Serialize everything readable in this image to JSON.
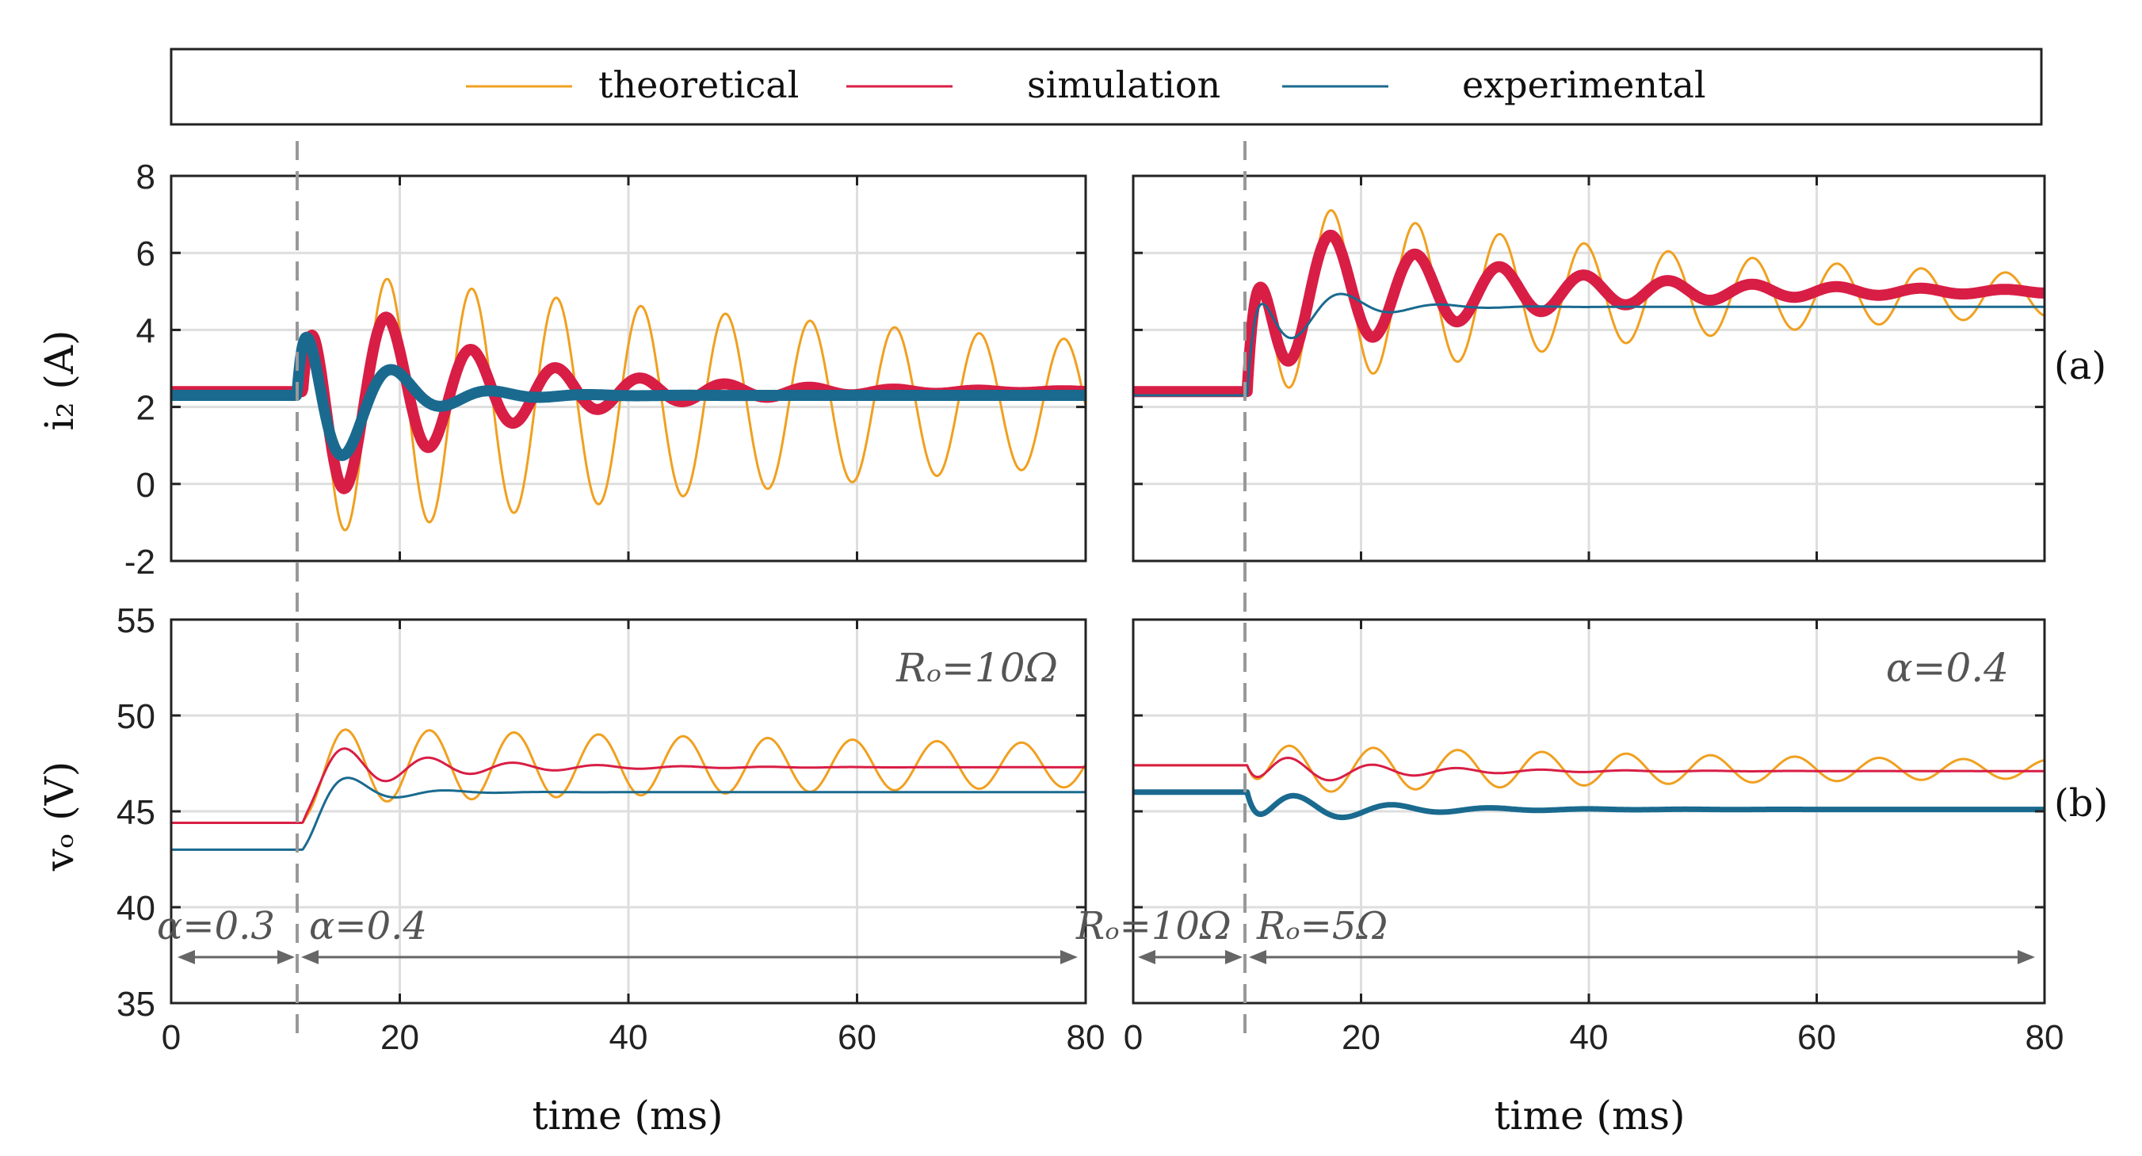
{
  "legend": {
    "entries": [
      {
        "label": "theoretical",
        "color": "#F0A020"
      },
      {
        "label": "simulation",
        "color": "#D81E45"
      },
      {
        "label": "experimental",
        "color": "#1A6A8F"
      }
    ]
  },
  "labels": {
    "ylabel_top": "i₂ (A)",
    "ylabel_bottom": "vₒ (V)",
    "xlabel": "time (ms)",
    "panel_a": "(a)",
    "panel_b": "(b)",
    "annot_left": "Rₒ=10Ω",
    "annot_right": "α=0.4",
    "arrow_left_before": "α=0.3",
    "arrow_left_after": "α=0.4",
    "arrow_right_before": "Rₒ=10Ω",
    "arrow_right_after": "Rₒ=5Ω"
  },
  "chart_data": [
    {
      "id": "top-left",
      "type": "line",
      "title": "",
      "xlabel": "",
      "ylabel": "i₂ (A)",
      "xlim": [
        0,
        80
      ],
      "ylim": [
        -2,
        8
      ],
      "xticks": [
        0,
        20,
        40,
        60,
        80
      ],
      "yticks": [
        -2,
        0,
        2,
        4,
        6,
        8
      ],
      "yticklabels": [
        "-2",
        "0",
        "2",
        "4",
        "6",
        "8"
      ],
      "grid": true,
      "step_time_ms": 11.5,
      "series": [
        {
          "name": "theoretical",
          "color": "#F0A020",
          "width": 3,
          "model": {
            "pre": 2.4,
            "t0": 11.5,
            "final": 2.1,
            "amp": 3.5,
            "tau": 90,
            "period": 7.4,
            "rise": 1.4
          }
        },
        {
          "name": "simulation",
          "color": "#D81E45",
          "width": 14,
          "model": {
            "pre": 2.4,
            "t0": 11.5,
            "final": 2.4,
            "amp": 3.4,
            "tau": 13,
            "period": 7.4,
            "rise": 1.4
          }
        },
        {
          "name": "experimental",
          "color": "#1A6A8F",
          "width": 14,
          "model": {
            "pre": 2.3,
            "t0": 11.0,
            "final": 2.3,
            "amp": 3.6,
            "tau": 5,
            "period": 8.6,
            "rise": 1.3
          }
        }
      ]
    },
    {
      "id": "top-right",
      "type": "line",
      "title": "",
      "xlabel": "",
      "ylabel": "",
      "xlim": [
        0,
        80
      ],
      "ylim": [
        -2,
        8
      ],
      "xticks": [
        0,
        20,
        40,
        60,
        80
      ],
      "yticks": [
        -2,
        0,
        2,
        4,
        6,
        8
      ],
      "yticklabels": [],
      "grid": true,
      "step_time_ms": 10,
      "series": [
        {
          "name": "theoretical",
          "color": "#F0A020",
          "width": 3,
          "model": {
            "pre": 2.4,
            "t0": 10,
            "final": 4.9,
            "amp": 2.6,
            "tau": 45,
            "period": 7.4,
            "rise": 1.2
          }
        },
        {
          "name": "simulation",
          "color": "#D81E45",
          "width": 14,
          "model": {
            "pre": 2.4,
            "t0": 10,
            "final": 5.0,
            "amp": 2.2,
            "tau": 18,
            "period": 7.4,
            "rise": 1.2
          }
        },
        {
          "name": "experimental",
          "color": "#1A6A8F",
          "width": 3,
          "model": {
            "pre": 2.3,
            "t0": 10,
            "final": 4.6,
            "amp": 1.8,
            "tau": 5,
            "period": 8.6,
            "rise": 1.5
          }
        }
      ]
    },
    {
      "id": "bottom-left",
      "type": "line",
      "title": "",
      "xlabel": "time (ms)",
      "ylabel": "vₒ (V)",
      "xlim": [
        0,
        80
      ],
      "ylim": [
        35,
        55
      ],
      "xticks": [
        0,
        20,
        40,
        60,
        80
      ],
      "xticklabels": [
        "0",
        "20",
        "40",
        "60",
        "80"
      ],
      "yticks": [
        35,
        40,
        45,
        50,
        55
      ],
      "yticklabels": [
        "35",
        "40",
        "45",
        "50",
        "55"
      ],
      "grid": true,
      "step_time_ms": 11.5,
      "series": [
        {
          "name": "theoretical",
          "color": "#F0A020",
          "width": 3,
          "model": {
            "pre": 44.4,
            "t0": 11.5,
            "final": 47.4,
            "amp": -2.0,
            "tau": 120,
            "period": 7.4,
            "rise": 1.8
          }
        },
        {
          "name": "simulation",
          "color": "#D81E45",
          "width": 3,
          "model": {
            "pre": 44.4,
            "t0": 11.5,
            "final": 47.3,
            "amp": -1.5,
            "tau": 10,
            "period": 7.4,
            "rise": 1.8
          }
        },
        {
          "name": "experimental",
          "color": "#1A6A8F",
          "width": 3,
          "model": {
            "pre": 43.0,
            "t0": 11.5,
            "final": 46.0,
            "amp": -2.2,
            "tau": 4,
            "period": 8.6,
            "rise": 2.0
          }
        }
      ]
    },
    {
      "id": "bottom-right",
      "type": "line",
      "title": "",
      "xlabel": "time (ms)",
      "ylabel": "",
      "xlim": [
        0,
        80
      ],
      "ylim": [
        35,
        55
      ],
      "xticks": [
        0,
        20,
        40,
        60,
        80
      ],
      "xticklabels": [
        "0",
        "20",
        "40",
        "60",
        "80"
      ],
      "yticks": [
        35,
        40,
        45,
        50,
        55
      ],
      "yticklabels": [],
      "grid": true,
      "step_time_ms": 10,
      "series": [
        {
          "name": "theoretical",
          "color": "#F0A020",
          "width": 3,
          "model": {
            "pre": 47.4,
            "t0": 10,
            "final": 47.2,
            "amp": -1.3,
            "tau": 70,
            "period": 7.4,
            "rise": 0.8
          }
        },
        {
          "name": "simulation",
          "color": "#D81E45",
          "width": 3,
          "model": {
            "pre": 47.4,
            "t0": 10,
            "final": 47.1,
            "amp": -1.0,
            "tau": 10,
            "period": 7.4,
            "rise": 0.8
          }
        },
        {
          "name": "experimental",
          "color": "#1A6A8F",
          "width": 7,
          "model": {
            "pre": 46.0,
            "t0": 10,
            "final": 45.1,
            "amp": -1.2,
            "tau": 8,
            "period": 8.6,
            "rise": 0.8
          }
        }
      ]
    }
  ]
}
